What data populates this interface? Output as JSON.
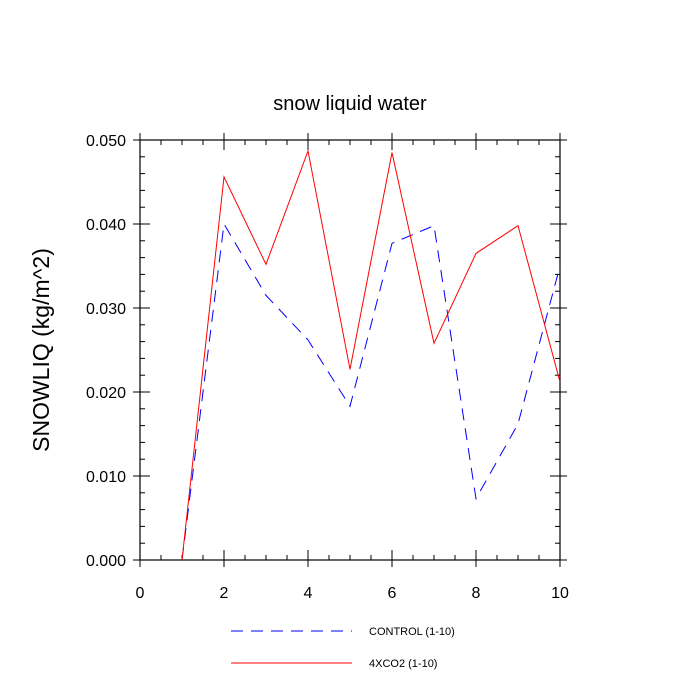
{
  "chart_data": {
    "type": "line",
    "title": "snow liquid water",
    "xlabel": "",
    "ylabel": "SNOWLIQ  (kg/m^2)",
    "xlim": [
      0,
      10
    ],
    "ylim": [
      0,
      0.05
    ],
    "x_ticks": [
      0,
      2,
      4,
      6,
      8,
      10
    ],
    "x_tick_labels": [
      "0",
      "2",
      "4",
      "6",
      "8",
      "10"
    ],
    "y_ticks": [
      0,
      0.01,
      0.02,
      0.03,
      0.04,
      0.05
    ],
    "y_tick_labels": [
      "0.000",
      "0.010",
      "0.020",
      "0.030",
      "0.040",
      "0.050"
    ],
    "grid": false,
    "legend_position": "bottom",
    "x": [
      1,
      2,
      3,
      4,
      5,
      6,
      7,
      8,
      9,
      10
    ],
    "series": [
      {
        "name": "CONTROL (1-10)",
        "color": "#0000ff",
        "dash": "dashed",
        "values": [
          0.0,
          0.04,
          0.0315,
          0.0262,
          0.0183,
          0.0377,
          0.0398,
          0.0073,
          0.0162,
          0.035
        ]
      },
      {
        "name": "4XCO2 (1-10)",
        "color": "#ff0000",
        "dash": "solid",
        "values": [
          0.0,
          0.0456,
          0.0352,
          0.0487,
          0.0227,
          0.0485,
          0.0258,
          0.0365,
          0.0398,
          0.0212
        ]
      }
    ]
  }
}
